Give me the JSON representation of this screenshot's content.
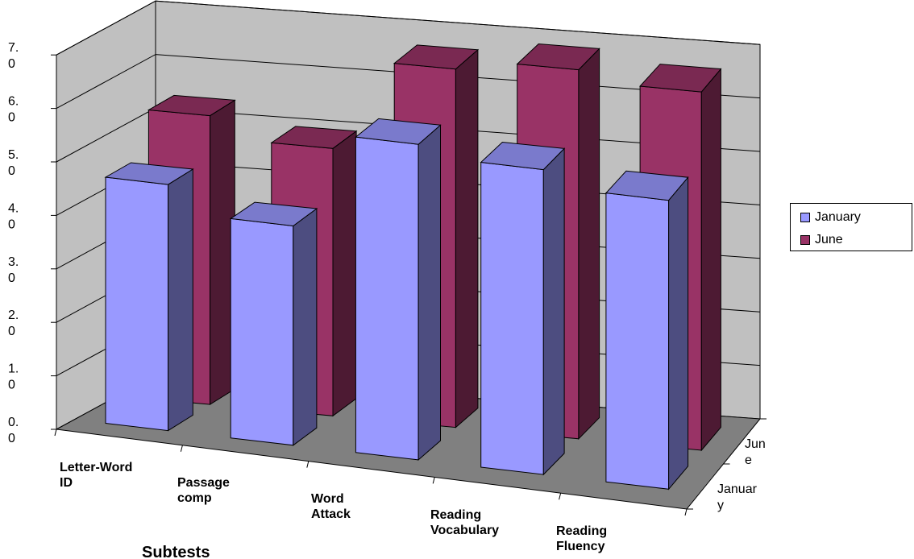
{
  "chart_data": {
    "type": "bar",
    "title": "",
    "xlabel": "Subtests",
    "ylabel": "",
    "ylim": [
      0,
      7
    ],
    "grid": true,
    "legend": "right",
    "y_tick_labels": [
      [
        "0.",
        "0"
      ],
      [
        "1.",
        "0"
      ],
      [
        "2.",
        "0"
      ],
      [
        "3.",
        "0"
      ],
      [
        "4.",
        "0"
      ],
      [
        "5.",
        "0"
      ],
      [
        "6.",
        "0"
      ],
      [
        "7.",
        "0"
      ]
    ],
    "categories": [
      [
        "Letter-Word",
        "ID"
      ],
      [
        "Passage",
        "comp"
      ],
      [
        "Word",
        "Attack"
      ],
      [
        "Reading",
        "Vocabulary"
      ],
      [
        "Reading",
        "Fluency"
      ]
    ],
    "series_axis_labels": [
      [
        "Januar",
        "y"
      ],
      [
        "Jun",
        "e"
      ]
    ],
    "series": [
      {
        "name": "January",
        "values": [
          4.6,
          4.1,
          5.9,
          5.7,
          5.4
        ]
      },
      {
        "name": "June",
        "values": [
          5.4,
          5.0,
          6.7,
          6.9,
          6.7
        ]
      }
    ],
    "colors": {
      "January": "#9999FF",
      "June": "#993366",
      "wall": "#C0C0C0",
      "floor": "#808080"
    }
  }
}
